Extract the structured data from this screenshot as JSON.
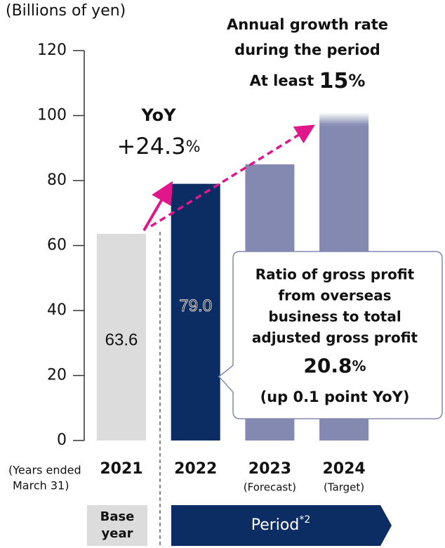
{
  "chart_data": {
    "type": "bar",
    "y_axis_label": "(Billions of yen)",
    "x_axis_note": [
      "(Years ended",
      "March 31)"
    ],
    "categories": [
      "2021",
      "2022",
      "2023",
      "2024"
    ],
    "category_notes": [
      null,
      null,
      "(Forecast)",
      "(Target)"
    ],
    "values": [
      63.6,
      79.0,
      85,
      97
    ],
    "value_labels": [
      "63.6",
      "79.0",
      null,
      null
    ],
    "colors": [
      "#dcdcdc",
      "#0c2d63",
      "#8389b0",
      "#8389b0"
    ],
    "ylim": [
      0,
      120
    ],
    "yticks": [
      0,
      20,
      40,
      60,
      80,
      100,
      120
    ],
    "yoy": {
      "label": "YoY",
      "value": "+24.3",
      "unit": "%"
    },
    "growth": {
      "lines": [
        "Annual growth rate",
        "during the period"
      ],
      "prefix": "At least",
      "value": "15",
      "unit": "%"
    },
    "callout": {
      "lines": [
        "Ratio of gross profit",
        "from overseas",
        "business to total",
        "adjusted gross profit"
      ],
      "value": "20.8",
      "unit": "%",
      "note": "(up 0.1 point YoY)"
    },
    "base_label": [
      "Base",
      "year"
    ],
    "period_label": "Period",
    "period_mark": "*2"
  }
}
